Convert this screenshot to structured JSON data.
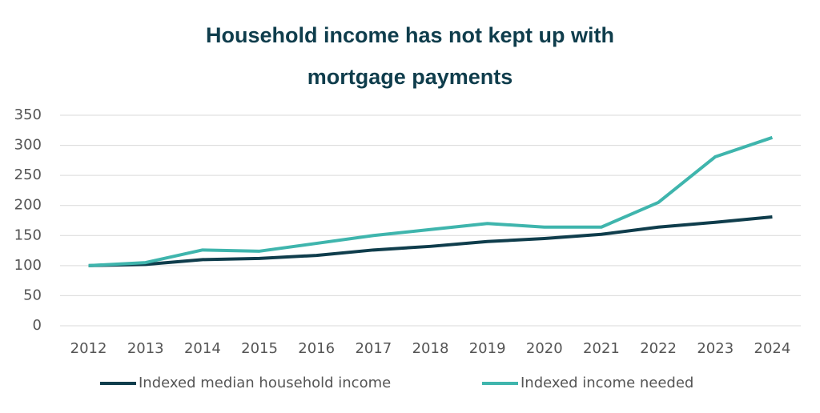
{
  "chart_data": {
    "type": "line",
    "title": "Household income has not kept up with mortgage payments",
    "categories": [
      "2012",
      "2013",
      "2014",
      "2015",
      "2016",
      "2017",
      "2018",
      "2019",
      "2020",
      "2021",
      "2022",
      "2023",
      "2024"
    ],
    "series": [
      {
        "name": "Indexed median household income",
        "color": "#0f3d4c",
        "values": [
          100,
          102,
          110,
          112,
          117,
          126,
          132,
          140,
          145,
          152,
          164,
          172,
          181
        ]
      },
      {
        "name": "Indexed income needed",
        "color": "#3fb5ad",
        "values": [
          100,
          105,
          126,
          124,
          137,
          150,
          160,
          170,
          164,
          164,
          205,
          281,
          313
        ]
      }
    ],
    "ylim": [
      0,
      350
    ],
    "yticks": [
      0,
      50,
      100,
      150,
      200,
      250,
      300,
      350
    ],
    "grid": true
  }
}
